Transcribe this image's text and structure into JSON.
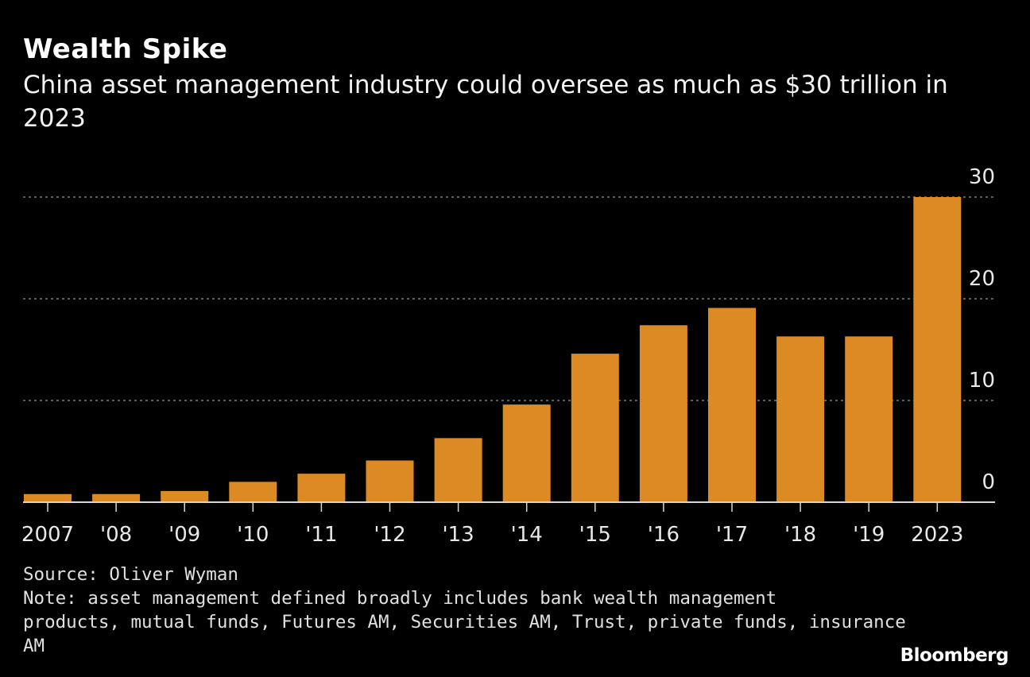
{
  "header": {
    "title": "Wealth Spike",
    "subtitle": "China asset management industry could oversee as much as $30 trillion in 2023"
  },
  "chart_data": {
    "type": "bar",
    "title": "Wealth Spike",
    "subtitle": "China asset management industry could oversee as much as $30 trillion in 2023",
    "categories": [
      "2007",
      "'08",
      "'09",
      "'10",
      "'11",
      "'12",
      "'13",
      "'14",
      "'15",
      "'16",
      "'17",
      "'18",
      "'19",
      "2023"
    ],
    "values": [
      0.8,
      0.8,
      1.1,
      2.0,
      2.8,
      4.1,
      6.3,
      9.6,
      14.6,
      17.4,
      19.1,
      16.3,
      16.3,
      30
    ],
    "xlabel": "",
    "ylabel": "",
    "units": "$ trillion",
    "ylim": [
      0,
      30
    ],
    "yticks": [
      0,
      10,
      20,
      30
    ],
    "grid": true,
    "y_axis_side": "right",
    "bar_color": "#db8a24",
    "gridline_color": "#7a7a7a",
    "axis_color": "#d8d8d8"
  },
  "footer": {
    "source": "Source: Oliver Wyman",
    "note_lines": [
      "Note: asset management defined broadly includes bank wealth management",
      "products, mutual funds, Futures AM, Securities AM, Trust, private funds, insurance",
      "AM"
    ],
    "brand": "Bloomberg"
  }
}
